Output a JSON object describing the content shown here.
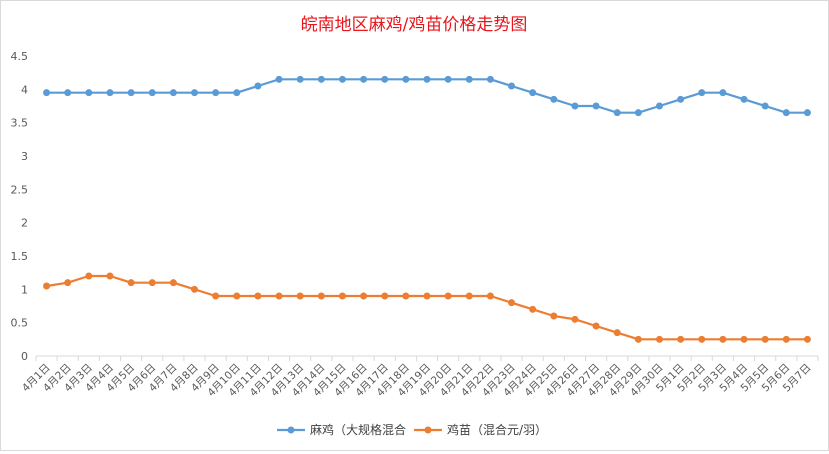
{
  "chart_data": {
    "type": "line",
    "title": "皖南地区麻鸡/鸡苗价格走势图",
    "xlabel": "",
    "ylabel": "",
    "ylim": [
      0,
      4.5
    ],
    "yticks": [
      "0",
      "0.5",
      "1",
      "1.5",
      "2",
      "2.5",
      "3",
      "3.5",
      "4",
      "4.5"
    ],
    "grid": false,
    "legend_position": "bottom",
    "categories": [
      "4月1日",
      "4月2日",
      "4月3日",
      "4月4日",
      "4月5日",
      "4月6日",
      "4月7日",
      "4月8日",
      "4月9日",
      "4月10日",
      "4月11日",
      "4月12日",
      "4月13日",
      "4月14日",
      "4月15日",
      "4月16日",
      "4月17日",
      "4月18日",
      "4月19日",
      "4月20日",
      "4月21日",
      "4月22日",
      "4月23日",
      "4月24日",
      "4月25日",
      "4月26日",
      "4月27日",
      "4月28日",
      "4月29日",
      "4月30日",
      "5月1日",
      "5月2日",
      "5月3日",
      "5月4日",
      "5月5日",
      "5月6日",
      "5月7日"
    ],
    "series": [
      {
        "name": "麻鸡（大规格混合",
        "color": "#5b9bd5",
        "values": [
          3.95,
          3.95,
          3.95,
          3.95,
          3.95,
          3.95,
          3.95,
          3.95,
          3.95,
          3.95,
          4.05,
          4.15,
          4.15,
          4.15,
          4.15,
          4.15,
          4.15,
          4.15,
          4.15,
          4.15,
          4.15,
          4.15,
          4.05,
          3.95,
          3.85,
          3.75,
          3.75,
          3.65,
          3.65,
          3.75,
          3.85,
          3.95,
          3.95,
          3.85,
          3.75,
          3.65,
          3.65
        ]
      },
      {
        "name": "鸡苗（混合元/羽）",
        "color": "#ed7d31",
        "values": [
          1.05,
          1.1,
          1.2,
          1.2,
          1.1,
          1.1,
          1.1,
          1.0,
          0.9,
          0.9,
          0.9,
          0.9,
          0.9,
          0.9,
          0.9,
          0.9,
          0.9,
          0.9,
          0.9,
          0.9,
          0.9,
          0.9,
          0.8,
          0.7,
          0.6,
          0.55,
          0.45,
          0.35,
          0.25,
          0.25,
          0.25,
          0.25,
          0.25,
          0.25,
          0.25,
          0.25,
          0.25
        ]
      }
    ]
  }
}
